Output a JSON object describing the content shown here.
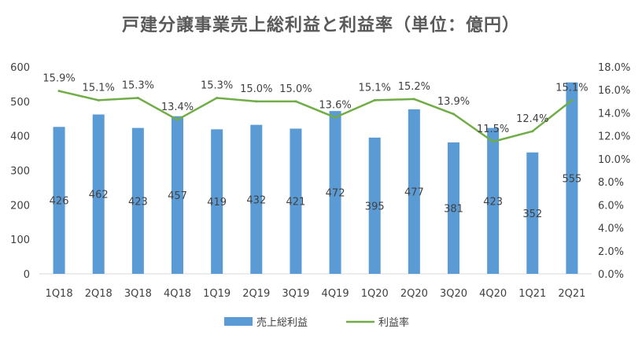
{
  "chart_data": {
    "type": "bar",
    "title": "戸建分譲事業売上総利益と利益率（単位：億円）",
    "categories": [
      "1Q18",
      "2Q18",
      "3Q18",
      "4Q18",
      "1Q19",
      "2Q19",
      "3Q19",
      "4Q19",
      "1Q20",
      "2Q20",
      "3Q20",
      "4Q20",
      "1Q21",
      "2Q21"
    ],
    "series": [
      {
        "name": "売上総利益",
        "type": "bar",
        "axis": "left",
        "color": "#5B9BD5",
        "values": [
          426,
          462,
          423,
          457,
          419,
          432,
          421,
          472,
          395,
          477,
          381,
          423,
          352,
          555
        ],
        "labels": [
          "426",
          "462",
          "423",
          "457",
          "419",
          "432",
          "421",
          "472",
          "395",
          "477",
          "381",
          "423",
          "352",
          "555"
        ]
      },
      {
        "name": "利益率",
        "type": "line",
        "axis": "right",
        "color": "#70AD47",
        "values": [
          15.9,
          15.1,
          15.3,
          13.4,
          15.3,
          15.0,
          15.0,
          13.6,
          15.1,
          15.2,
          13.9,
          11.5,
          12.4,
          15.1
        ],
        "labels": [
          "15.9%",
          "15.1%",
          "15.3%",
          "13.4%",
          "15.3%",
          "15.0%",
          "15.0%",
          "13.6%",
          "15.1%",
          "15.2%",
          "13.9%",
          "11.5%",
          "12.4%",
          "15.1%"
        ]
      }
    ],
    "y_left": {
      "min": 0,
      "max": 600,
      "ticks": [
        "0",
        "100",
        "200",
        "300",
        "400",
        "500",
        "600"
      ]
    },
    "y_right": {
      "min": 0,
      "max": 18,
      "ticks": [
        "0.0%",
        "2.0%",
        "4.0%",
        "6.0%",
        "8.0%",
        "10.0%",
        "12.0%",
        "14.0%",
        "16.0%",
        "18.0%"
      ]
    },
    "legend": {
      "position": "bottom",
      "items": [
        "売上総利益",
        "利益率"
      ]
    },
    "grid": false
  }
}
